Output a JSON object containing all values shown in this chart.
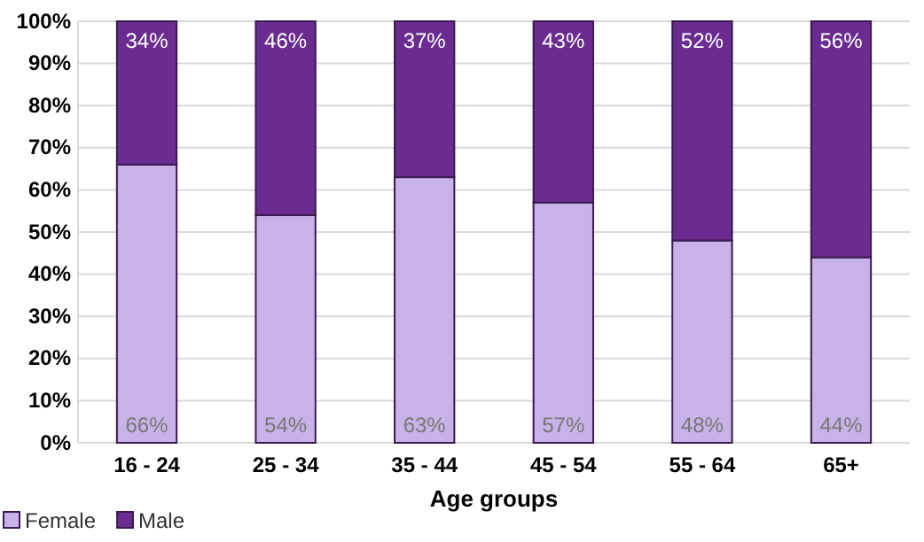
{
  "chart_data": {
    "type": "bar",
    "stacked": true,
    "xlabel": "Age groups",
    "categories": [
      "16 - 24",
      "25 - 34",
      "35 - 44",
      "45 - 54",
      "55 - 64",
      "65+"
    ],
    "series": [
      {
        "name": "Female",
        "color": "#c9b2e8",
        "values": [
          66,
          54,
          63,
          57,
          48,
          44
        ],
        "value_labels": [
          "66%",
          "54%",
          "63%",
          "57%",
          "48%",
          "44%"
        ]
      },
      {
        "name": "Male",
        "color": "#6a2c91",
        "values": [
          34,
          46,
          37,
          43,
          52,
          56
        ],
        "value_labels": [
          "34%",
          "46%",
          "37%",
          "43%",
          "52%",
          "56%"
        ]
      }
    ],
    "ylim": [
      0,
      100
    ],
    "yticks": [
      {
        "value": 0,
        "label": "0%"
      },
      {
        "value": 10,
        "label": "10%"
      },
      {
        "value": 20,
        "label": "20%"
      },
      {
        "value": 30,
        "label": "30%"
      },
      {
        "value": 40,
        "label": "40%"
      },
      {
        "value": 50,
        "label": "50%"
      },
      {
        "value": 60,
        "label": "60%"
      },
      {
        "value": 70,
        "label": "70%"
      },
      {
        "value": 80,
        "label": "80%"
      },
      {
        "value": 90,
        "label": "90%"
      },
      {
        "value": 100,
        "label": "100%"
      }
    ],
    "grid": "y",
    "legend": "bottom left"
  }
}
